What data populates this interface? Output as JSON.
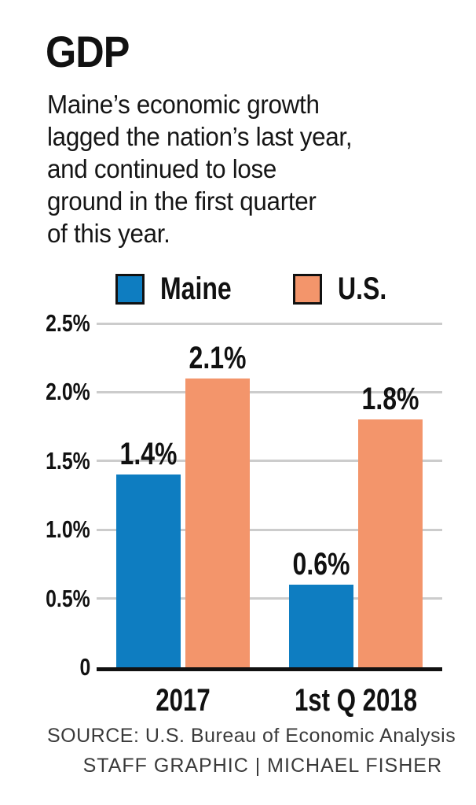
{
  "header": {
    "title": "GDP",
    "description_lines": [
      "Maine’s economic growth",
      "lagged the nation’s last year,",
      "and continued to lose",
      "ground in the first quarter",
      "of this year."
    ]
  },
  "chart_data": {
    "type": "bar",
    "title": "GDP",
    "subtitle": "Maine’s economic growth lagged the nation’s last year, and continued to lose ground in the first quarter of this year.",
    "categories": [
      "2017",
      "1st Q 2018"
    ],
    "series": [
      {
        "name": "Maine",
        "color": "#0e7dc1",
        "values": [
          1.4,
          0.6
        ],
        "data_labels": [
          "1.4%",
          "0.6%"
        ]
      },
      {
        "name": "U.S.",
        "color": "#f3956b",
        "values": [
          2.1,
          1.8
        ],
        "data_labels": [
          "2.1%",
          "1.8%"
        ]
      }
    ],
    "y_axis": {
      "max": 2.5,
      "ticks": [
        {
          "value": 0,
          "label": "0"
        },
        {
          "value": 0.5,
          "label": "0.5%"
        },
        {
          "value": 1,
          "label": "1.0%"
        },
        {
          "value": 1.5,
          "label": "1.5%"
        },
        {
          "value": 2,
          "label": "2.0%"
        },
        {
          "value": 2.5,
          "label": "2.5%"
        }
      ]
    },
    "xlabel": "",
    "ylabel": "",
    "grid": true,
    "legend_position": "top"
  },
  "footer": {
    "source": "SOURCE: U.S. Bureau of Economic Analysis",
    "credit": "STAFF GRAPHIC | MICHAEL FISHER"
  },
  "colors": {
    "maine_bar": "#0e7dc1",
    "us_bar": "#f3956b",
    "gridline": "#cccccc",
    "baseline": "#111111",
    "text": "#111111",
    "footer_text": "#3a3a3a"
  }
}
